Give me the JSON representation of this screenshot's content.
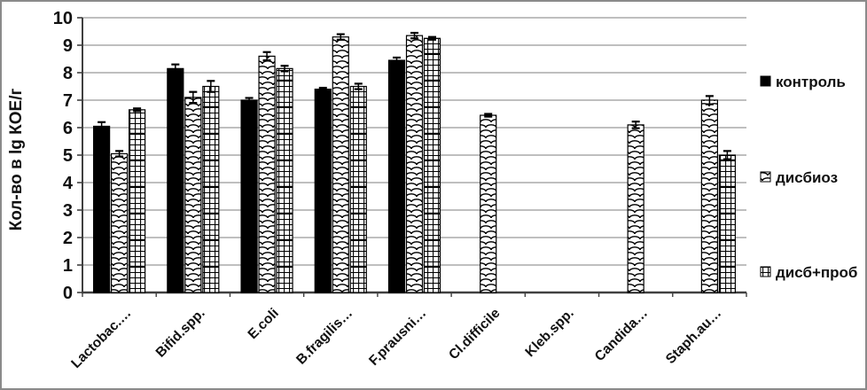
{
  "window": {
    "background": "#ffffff",
    "frame_border_color": "#8a8a8a"
  },
  "chart_data": {
    "type": "bar",
    "title": "",
    "xlabel": "",
    "ylabel": "Кол-во в lg КОЕ/г",
    "ylim": [
      0,
      10
    ],
    "yticks": [
      0,
      1,
      2,
      3,
      4,
      5,
      6,
      7,
      8,
      9,
      10
    ],
    "grid": "horizontal",
    "legend_position": "right",
    "categories": [
      "Lactobac.…",
      "Bifid.spp.",
      "E.coli",
      "B.fragilis…",
      "F.prausni…",
      "Cl.difficile",
      "Kleb.spp.",
      "Candida…",
      "Staph.au…"
    ],
    "series": [
      {
        "name": "контроль",
        "pattern": "solid",
        "values": [
          6.05,
          8.15,
          7.0,
          7.4,
          8.45,
          null,
          null,
          null,
          null
        ],
        "errors": [
          0.15,
          0.15,
          0.08,
          0.05,
          0.1,
          null,
          null,
          null,
          null
        ]
      },
      {
        "name": "дисбиоз",
        "pattern": "scale",
        "values": [
          5.05,
          7.1,
          8.6,
          9.3,
          9.35,
          6.45,
          null,
          6.1,
          7.0
        ],
        "errors": [
          0.1,
          0.2,
          0.15,
          0.1,
          0.1,
          0.05,
          null,
          0.12,
          0.15
        ]
      },
      {
        "name": "дисб+проб",
        "pattern": "grid",
        "values": [
          6.65,
          7.5,
          8.15,
          7.5,
          9.25,
          null,
          null,
          null,
          5.0
        ],
        "errors": [
          0.05,
          0.2,
          0.1,
          0.1,
          0.05,
          null,
          null,
          null,
          0.15
        ]
      }
    ],
    "colors": {
      "bar_fill": "#000000",
      "gridline": "#999999",
      "axis": "#404040",
      "text": "#111111"
    }
  }
}
